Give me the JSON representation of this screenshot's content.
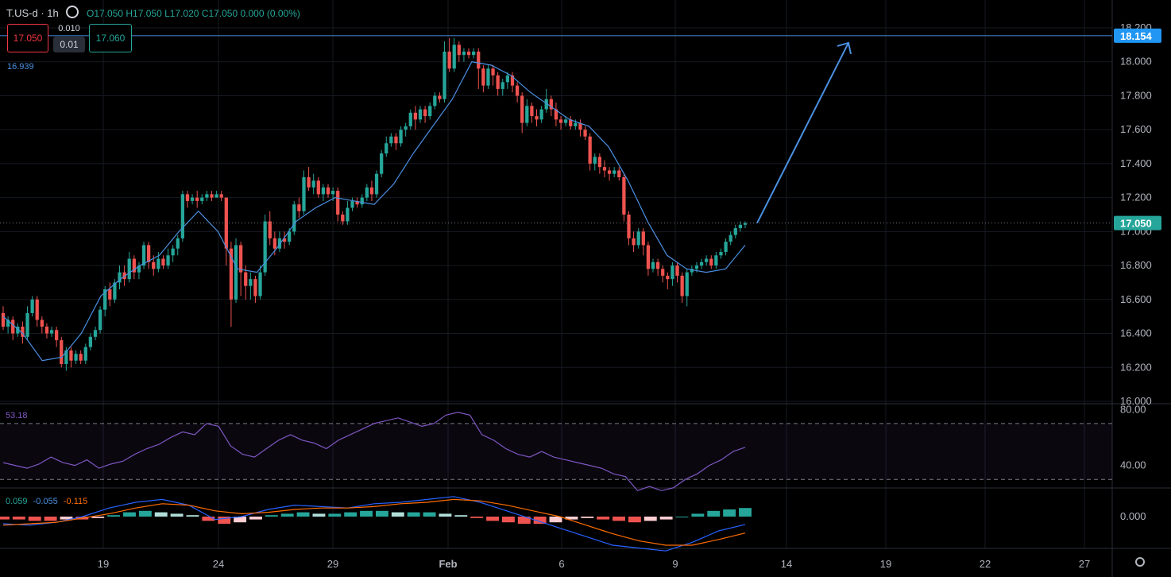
{
  "header": {
    "symbol": "T.US-d · 1h",
    "ohlc": "O17.050  H17.050  L17.020  C17.050  0.000 (0.00%)"
  },
  "trade_panel": {
    "sell_price": "17.050",
    "spread": "0.010",
    "lot": "0.01",
    "buy_price": "17.060"
  },
  "indicators": {
    "ema_value": "16.939",
    "rsi_value": "53.18",
    "macd_hist": "0.059",
    "macd_line": "-0.055",
    "macd_signal": "-0.115"
  },
  "colors": {
    "up": "#26a69a",
    "down": "#ef5350",
    "ema": "#4a90e2",
    "rsi": "#7e57c2",
    "macd": "#2962ff",
    "signal": "#ff6d00",
    "level": "#4a90e2",
    "background": "#000000"
  },
  "chart_data": [
    {
      "type": "candlestick",
      "title": "",
      "y_ticks": [
        "16.000",
        "16.200",
        "16.400",
        "16.600",
        "16.800",
        "17.000",
        "17.200",
        "17.400",
        "17.600",
        "17.800",
        "18.000",
        "18.200"
      ],
      "ylim": [
        16.0,
        18.2
      ],
      "x_ticks": [
        "19",
        "24",
        "29",
        "Feb",
        "6",
        "9",
        "14",
        "19",
        "22",
        "27"
      ],
      "resistance_level": 18.154,
      "last_price": 17.05,
      "price_labels": [
        "18.154",
        "17.050"
      ],
      "candles": [
        [
          16.52,
          16.44,
          16.56,
          16.42
        ],
        [
          16.44,
          16.48,
          16.5,
          16.4
        ],
        [
          16.48,
          16.4,
          16.5,
          16.36
        ],
        [
          16.4,
          16.44,
          16.46,
          16.38
        ],
        [
          16.44,
          16.38,
          16.47,
          16.34
        ],
        [
          16.38,
          16.52,
          16.56,
          16.36
        ],
        [
          16.52,
          16.6,
          16.62,
          16.5
        ],
        [
          16.6,
          16.48,
          16.62,
          16.44
        ],
        [
          16.48,
          16.44,
          16.5,
          16.4
        ],
        [
          16.44,
          16.4,
          16.46,
          16.37
        ],
        [
          16.4,
          16.42,
          16.44,
          16.38
        ],
        [
          16.42,
          16.36,
          16.44,
          16.32
        ],
        [
          16.36,
          16.22,
          16.38,
          16.2
        ],
        [
          16.22,
          16.3,
          16.32,
          16.18
        ],
        [
          16.3,
          16.24,
          16.32,
          16.2
        ],
        [
          16.24,
          16.28,
          16.3,
          16.22
        ],
        [
          16.28,
          16.24,
          16.3,
          16.22
        ],
        [
          16.24,
          16.32,
          16.34,
          16.22
        ],
        [
          16.32,
          16.38,
          16.4,
          16.3
        ],
        [
          16.38,
          16.42,
          16.44,
          16.36
        ],
        [
          16.42,
          16.54,
          16.56,
          16.4
        ],
        [
          16.54,
          16.66,
          16.68,
          16.5
        ],
        [
          16.66,
          16.6,
          16.7,
          16.56
        ],
        [
          16.6,
          16.7,
          16.72,
          16.58
        ],
        [
          16.7,
          16.76,
          16.8,
          16.66
        ],
        [
          16.76,
          16.72,
          16.8,
          16.68
        ],
        [
          16.72,
          16.84,
          16.88,
          16.7
        ],
        [
          16.84,
          16.76,
          16.86,
          16.72
        ],
        [
          16.76,
          16.8,
          16.82,
          16.72
        ],
        [
          16.8,
          16.92,
          16.94,
          16.78
        ],
        [
          16.92,
          16.82,
          16.94,
          16.78
        ],
        [
          16.82,
          16.78,
          16.86,
          16.74
        ],
        [
          16.78,
          16.84,
          16.88,
          16.76
        ],
        [
          16.84,
          16.8,
          16.86,
          16.78
        ],
        [
          16.8,
          16.86,
          16.9,
          16.78
        ],
        [
          16.86,
          16.9,
          16.92,
          16.82
        ],
        [
          16.9,
          16.96,
          16.98,
          16.86
        ],
        [
          16.96,
          17.22,
          17.24,
          16.94
        ],
        [
          17.22,
          17.18,
          17.24,
          17.14
        ],
        [
          17.18,
          17.2,
          17.22,
          17.16
        ],
        [
          17.2,
          17.18,
          17.24,
          17.14
        ],
        [
          17.18,
          17.2,
          17.22,
          17.16
        ],
        [
          17.2,
          17.22,
          17.24,
          17.18
        ],
        [
          17.22,
          17.2,
          17.24,
          17.18
        ],
        [
          17.2,
          17.22,
          17.24,
          17.2
        ],
        [
          17.22,
          17.2,
          17.24,
          17.18
        ],
        [
          17.2,
          16.9,
          17.2,
          16.8
        ],
        [
          16.9,
          16.6,
          16.94,
          16.44
        ],
        [
          16.6,
          16.92,
          16.96,
          16.58
        ],
        [
          16.92,
          16.76,
          16.94,
          16.62
        ],
        [
          16.76,
          16.68,
          16.8,
          16.6
        ],
        [
          16.68,
          16.72,
          16.76,
          16.6
        ],
        [
          16.72,
          16.62,
          16.74,
          16.58
        ],
        [
          16.62,
          16.76,
          16.8,
          16.6
        ],
        [
          16.76,
          17.06,
          17.1,
          16.74
        ],
        [
          17.06,
          16.96,
          17.12,
          16.92
        ],
        [
          16.96,
          16.9,
          17.0,
          16.86
        ],
        [
          16.9,
          16.96,
          17.0,
          16.88
        ],
        [
          16.96,
          16.94,
          17.0,
          16.9
        ],
        [
          16.94,
          17.0,
          17.02,
          16.92
        ],
        [
          17.0,
          17.16,
          17.18,
          16.98
        ],
        [
          17.16,
          17.12,
          17.2,
          17.08
        ],
        [
          17.12,
          17.32,
          17.36,
          17.1
        ],
        [
          17.32,
          17.26,
          17.38,
          17.24
        ],
        [
          17.26,
          17.3,
          17.34,
          17.22
        ],
        [
          17.3,
          17.22,
          17.32,
          17.2
        ],
        [
          17.22,
          17.26,
          17.28,
          17.18
        ],
        [
          17.26,
          17.22,
          17.28,
          17.2
        ],
        [
          17.22,
          17.24,
          17.26,
          17.18
        ],
        [
          17.24,
          17.1,
          17.26,
          17.06
        ],
        [
          17.1,
          17.06,
          17.12,
          17.04
        ],
        [
          17.06,
          17.14,
          17.18,
          17.04
        ],
        [
          17.14,
          17.18,
          17.2,
          17.12
        ],
        [
          17.18,
          17.16,
          17.2,
          17.14
        ],
        [
          17.16,
          17.2,
          17.22,
          17.14
        ],
        [
          17.2,
          17.26,
          17.28,
          17.18
        ],
        [
          17.26,
          17.22,
          17.3,
          17.18
        ],
        [
          17.22,
          17.34,
          17.36,
          17.2
        ],
        [
          17.34,
          17.46,
          17.48,
          17.32
        ],
        [
          17.46,
          17.52,
          17.56,
          17.44
        ],
        [
          17.52,
          17.56,
          17.58,
          17.5
        ],
        [
          17.56,
          17.52,
          17.58,
          17.48
        ],
        [
          17.52,
          17.6,
          17.62,
          17.5
        ],
        [
          17.6,
          17.62,
          17.64,
          17.56
        ],
        [
          17.62,
          17.7,
          17.72,
          17.6
        ],
        [
          17.7,
          17.66,
          17.74,
          17.6
        ],
        [
          17.66,
          17.72,
          17.74,
          17.64
        ],
        [
          17.72,
          17.68,
          17.74,
          17.64
        ],
        [
          17.68,
          17.74,
          17.76,
          17.66
        ],
        [
          17.74,
          17.8,
          17.82,
          17.72
        ],
        [
          17.8,
          17.78,
          17.82,
          17.76
        ],
        [
          17.78,
          18.06,
          18.12,
          17.76
        ],
        [
          18.06,
          17.96,
          18.14,
          17.94
        ],
        [
          17.96,
          18.1,
          18.14,
          17.94
        ],
        [
          18.1,
          18.04,
          18.12,
          18.0
        ],
        [
          18.04,
          18.06,
          18.08,
          18.0
        ],
        [
          18.06,
          18.04,
          18.08,
          18.02
        ],
        [
          18.04,
          18.06,
          18.08,
          18.02
        ],
        [
          18.06,
          17.96,
          18.08,
          17.84
        ],
        [
          17.96,
          17.86,
          17.98,
          17.82
        ],
        [
          17.86,
          17.96,
          17.98,
          17.84
        ],
        [
          17.96,
          17.92,
          17.98,
          17.86
        ],
        [
          17.92,
          17.84,
          17.94,
          17.8
        ],
        [
          17.84,
          17.88,
          17.9,
          17.8
        ],
        [
          17.88,
          17.92,
          17.94,
          17.84
        ],
        [
          17.92,
          17.86,
          17.94,
          17.82
        ],
        [
          17.86,
          17.8,
          17.88,
          17.76
        ],
        [
          17.8,
          17.64,
          17.82,
          17.58
        ],
        [
          17.64,
          17.74,
          17.78,
          17.62
        ],
        [
          17.74,
          17.68,
          17.76,
          17.64
        ],
        [
          17.68,
          17.66,
          17.72,
          17.62
        ],
        [
          17.66,
          17.72,
          17.74,
          17.64
        ],
        [
          17.72,
          17.78,
          17.84,
          17.7
        ],
        [
          17.78,
          17.72,
          17.8,
          17.68
        ],
        [
          17.72,
          17.66,
          17.76,
          17.62
        ],
        [
          17.66,
          17.64,
          17.68,
          17.6
        ],
        [
          17.64,
          17.66,
          17.68,
          17.62
        ],
        [
          17.66,
          17.62,
          17.68,
          17.6
        ],
        [
          17.62,
          17.64,
          17.66,
          17.6
        ],
        [
          17.64,
          17.6,
          17.66,
          17.56
        ],
        [
          17.6,
          17.56,
          17.62,
          17.54
        ],
        [
          17.56,
          17.4,
          17.58,
          17.36
        ],
        [
          17.4,
          17.44,
          17.46,
          17.36
        ],
        [
          17.44,
          17.38,
          17.46,
          17.34
        ],
        [
          17.38,
          17.36,
          17.42,
          17.32
        ],
        [
          17.36,
          17.34,
          17.38,
          17.3
        ],
        [
          17.34,
          17.36,
          17.38,
          17.32
        ],
        [
          17.36,
          17.32,
          17.38,
          17.3
        ],
        [
          17.32,
          17.1,
          17.34,
          17.06
        ],
        [
          17.1,
          16.96,
          17.12,
          16.92
        ],
        [
          16.96,
          16.92,
          17.0,
          16.88
        ],
        [
          16.92,
          17.0,
          17.02,
          16.9
        ],
        [
          17.0,
          16.92,
          17.02,
          16.86
        ],
        [
          16.92,
          16.78,
          16.94,
          16.74
        ],
        [
          16.78,
          16.82,
          16.84,
          16.76
        ],
        [
          16.82,
          16.78,
          16.84,
          16.74
        ],
        [
          16.78,
          16.74,
          16.8,
          16.7
        ],
        [
          16.74,
          16.72,
          16.76,
          16.66
        ],
        [
          16.72,
          16.8,
          16.82,
          16.68
        ],
        [
          16.8,
          16.74,
          16.82,
          16.7
        ],
        [
          16.74,
          16.62,
          16.76,
          16.58
        ],
        [
          16.62,
          16.76,
          16.78,
          16.56
        ],
        [
          16.76,
          16.78,
          16.8,
          16.74
        ],
        [
          16.78,
          16.8,
          16.82,
          16.76
        ],
        [
          16.8,
          16.82,
          16.84,
          16.78
        ],
        [
          16.82,
          16.84,
          16.86,
          16.8
        ],
        [
          16.84,
          16.8,
          16.86,
          16.78
        ],
        [
          16.8,
          16.86,
          16.88,
          16.78
        ],
        [
          16.86,
          16.88,
          16.9,
          16.84
        ],
        [
          16.88,
          16.94,
          16.96,
          16.86
        ],
        [
          16.94,
          16.98,
          17.0,
          16.92
        ],
        [
          16.98,
          17.02,
          17.04,
          16.96
        ],
        [
          17.02,
          17.04,
          17.06,
          17.0
        ],
        [
          17.04,
          17.05,
          17.06,
          17.02
        ]
      ],
      "ema": [
        16.5,
        16.4,
        16.24,
        16.26,
        16.4,
        16.62,
        16.72,
        16.8,
        16.86,
        17.0,
        17.12,
        17.0,
        16.78,
        16.76,
        16.9,
        17.06,
        17.14,
        17.2,
        17.18,
        17.16,
        17.28,
        17.46,
        17.62,
        17.78,
        18.0,
        17.98,
        17.92,
        17.82,
        17.74,
        17.66,
        17.62,
        17.5,
        17.3,
        17.06,
        16.86,
        16.78,
        16.76,
        16.78,
        16.92
      ],
      "projection_arrow": {
        "from": 17.05,
        "to": 18.13
      }
    },
    {
      "type": "line",
      "title": "RSI",
      "y_ticks": [
        "40.00",
        "80.00"
      ],
      "ylim": [
        25,
        83
      ],
      "levels": [
        70,
        30
      ],
      "values": [
        42,
        40,
        38,
        41,
        46,
        42,
        40,
        44,
        38,
        41,
        43,
        48,
        52,
        55,
        60,
        64,
        62,
        70,
        68,
        54,
        48,
        46,
        52,
        58,
        62,
        58,
        56,
        52,
        58,
        62,
        66,
        70,
        72,
        74,
        71,
        68,
        70,
        76,
        78,
        76,
        62,
        58,
        52,
        48,
        46,
        50,
        46,
        44,
        42,
        40,
        38,
        34,
        32,
        22,
        25,
        22,
        24,
        30,
        34,
        40,
        44,
        50,
        53
      ]
    },
    {
      "type": "bar",
      "title": "MACD",
      "y_ticks": [
        "0.000"
      ],
      "ylim": [
        -0.3,
        0.2
      ],
      "histogram": [
        -0.02,
        -0.02,
        -0.03,
        -0.03,
        -0.02,
        -0.02,
        -0.01,
        0.01,
        0.03,
        0.04,
        0.03,
        0.02,
        0.01,
        -0.03,
        -0.05,
        -0.04,
        -0.02,
        0.01,
        0.02,
        0.03,
        0.02,
        0.02,
        0.03,
        0.04,
        0.04,
        0.03,
        0.03,
        0.03,
        0.02,
        0.01,
        -0.01,
        -0.03,
        -0.04,
        -0.05,
        -0.05,
        -0.04,
        -0.02,
        -0.01,
        -0.02,
        -0.03,
        -0.04,
        -0.03,
        -0.02,
        0.0,
        0.02,
        0.04,
        0.05,
        0.06
      ],
      "macd_line": [
        -0.05,
        -0.06,
        -0.04,
        0.0,
        0.06,
        0.1,
        0.12,
        0.08,
        -0.02,
        0.0,
        0.05,
        0.08,
        0.07,
        0.06,
        0.09,
        0.1,
        0.12,
        0.14,
        0.1,
        0.04,
        -0.02,
        -0.08,
        -0.14,
        -0.2,
        -0.22,
        -0.24,
        -0.18,
        -0.1,
        -0.055
      ],
      "signal_line": [
        -0.06,
        -0.05,
        -0.04,
        -0.01,
        0.02,
        0.06,
        0.09,
        0.08,
        0.04,
        0.02,
        0.03,
        0.05,
        0.06,
        0.06,
        0.07,
        0.09,
        0.1,
        0.12,
        0.11,
        0.08,
        0.04,
        0.0,
        -0.06,
        -0.12,
        -0.17,
        -0.2,
        -0.2,
        -0.16,
        -0.115
      ]
    }
  ]
}
